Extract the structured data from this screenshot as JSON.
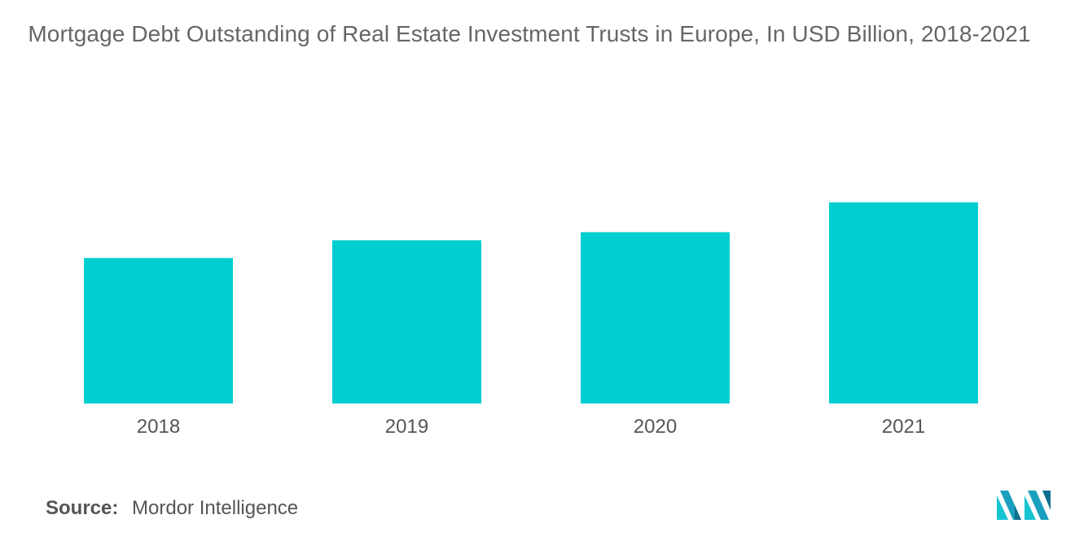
{
  "title": "Mortgage Debt Outstanding of Real Estate Investment Trusts in Europe, In USD Billion, 2018-2021",
  "source": {
    "label": "Source:",
    "text": "Mordor Intelligence"
  },
  "logo": {
    "icon": "mordor-intelligence-logo-icon",
    "colors": [
      "#1b9fbf",
      "#17c4d1",
      "#0e6f8f"
    ]
  },
  "colors": {
    "bar": "#00ced1"
  },
  "chart_data": {
    "type": "bar",
    "title": "Mortgage Debt Outstanding of Real Estate Investment Trusts in Europe, In USD Billion, 2018-2021",
    "categories": [
      "2018",
      "2019",
      "2020",
      "2021"
    ],
    "values": [
      180,
      202,
      212,
      249
    ],
    "ylim": [
      0,
      300
    ],
    "grid": false,
    "legend": "none",
    "xlabel": "",
    "ylabel": ""
  }
}
